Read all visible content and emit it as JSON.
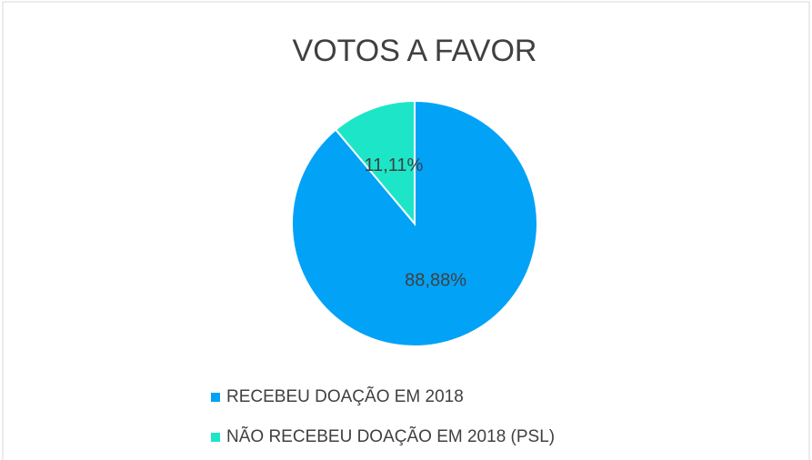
{
  "chart_data": {
    "type": "pie",
    "title": "VOTOS A FAVOR",
    "categories": [
      "RECEBEU DOAÇÃO EM 2018",
      "NÃO RECEBEU DOAÇÃO EM 2018 (PSL)"
    ],
    "values": [
      88.88,
      11.11
    ],
    "value_labels": [
      "88,88%",
      "11,11%"
    ],
    "colors": [
      "#02a2f7",
      "#1de6c8"
    ],
    "legend": "bottom"
  }
}
